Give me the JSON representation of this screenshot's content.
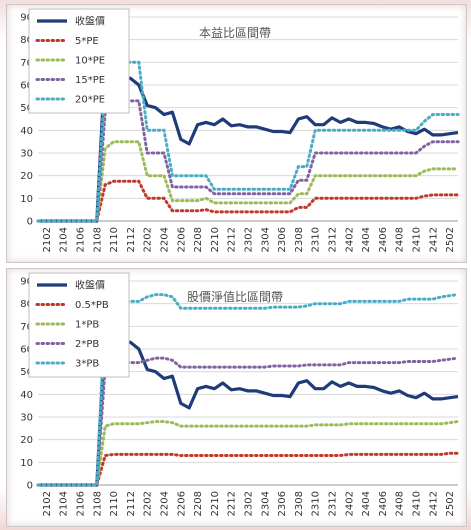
{
  "chart_data": [
    {
      "type": "line",
      "title": "本益比區間帶",
      "ylim": [
        0,
        90
      ],
      "yticks": [
        0,
        10,
        20,
        30,
        40,
        50,
        60,
        70,
        80,
        90
      ],
      "grid": true,
      "legend_position": "top-left",
      "x_tick_labels": [
        "2102",
        "2104",
        "2106",
        "2108",
        "2110",
        "2112",
        "2202",
        "2204",
        "2206",
        "2208",
        "2210",
        "2212",
        "2302",
        "2304",
        "2306",
        "2308",
        "2310",
        "2312",
        "2402",
        "2404",
        "2406",
        "2408",
        "2410",
        "2412",
        "2502"
      ],
      "x": [
        "2101",
        "2102",
        "2103",
        "2104",
        "2105",
        "2106",
        "2107",
        "2108",
        "2109",
        "2110",
        "2111",
        "2112",
        "2201",
        "2202",
        "2203",
        "2204",
        "2205",
        "2206",
        "2207",
        "2208",
        "2209",
        "2210",
        "2211",
        "2212",
        "2301",
        "2302",
        "2303",
        "2304",
        "2305",
        "2306",
        "2307",
        "2308",
        "2309",
        "2310",
        "2311",
        "2312",
        "2401",
        "2402",
        "2403",
        "2404",
        "2405",
        "2406",
        "2407",
        "2408",
        "2409",
        "2410",
        "2411",
        "2412",
        "2501",
        "2502",
        "2503"
      ],
      "series": [
        {
          "name": "收盤價",
          "color": "#1f3b7a",
          "style": "solid",
          "values": [
            0,
            0,
            0,
            0,
            0,
            0,
            0,
            0,
            70,
            64,
            62,
            63,
            60,
            51,
            50,
            47,
            48,
            36,
            34,
            42.5,
            43.5,
            42.5,
            45,
            42,
            42.5,
            41.5,
            41.5,
            40.5,
            39.5,
            39.5,
            39,
            45,
            46,
            42.5,
            42.5,
            45.5,
            43.5,
            45,
            43.5,
            43.5,
            43,
            41.5,
            40.5,
            41.5,
            39.5,
            38.5,
            40.5,
            38,
            38,
            38.5,
            39
          ]
        },
        {
          "name": "5*PE",
          "color": "#c0392b",
          "style": "dotted",
          "values": [
            0,
            0,
            0,
            0,
            0,
            0,
            0,
            0,
            16,
            17.5,
            17.5,
            17.5,
            17.5,
            10,
            10,
            10,
            4.5,
            4.5,
            4.5,
            4.5,
            5,
            4,
            4,
            4,
            4,
            4,
            4,
            4,
            4,
            4,
            4,
            6,
            6,
            10,
            10,
            10,
            10,
            10,
            10,
            10,
            10,
            10,
            10,
            10,
            10,
            10,
            11,
            11.5,
            11.5,
            11.5,
            11.5
          ]
        },
        {
          "name": "10*PE",
          "color": "#9bbb59",
          "style": "dotted",
          "values": [
            0,
            0,
            0,
            0,
            0,
            0,
            0,
            0,
            32,
            35,
            35,
            35,
            35,
            20,
            20,
            20,
            9,
            9,
            9,
            9,
            10,
            8,
            8,
            8,
            8,
            8,
            8,
            8,
            8,
            8,
            8,
            12,
            12,
            20,
            20,
            20,
            20,
            20,
            20,
            20,
            20,
            20,
            20,
            20,
            20,
            20,
            22,
            23,
            23,
            23,
            23
          ]
        },
        {
          "name": "15*PE",
          "color": "#8064a2",
          "style": "dotted",
          "values": [
            0,
            0,
            0,
            0,
            0,
            0,
            0,
            0,
            48,
            53,
            53,
            53,
            53,
            30,
            30,
            30,
            15,
            15,
            15,
            15,
            15,
            12,
            12,
            12,
            12,
            12,
            12,
            12,
            12,
            12,
            12,
            18,
            18,
            30,
            30,
            30,
            30,
            30,
            30,
            30,
            30,
            30,
            30,
            30,
            30,
            30,
            33,
            35,
            35,
            35,
            35
          ]
        },
        {
          "name": "20*PE",
          "color": "#4bacc6",
          "style": "dotted",
          "values": [
            0,
            0,
            0,
            0,
            0,
            0,
            0,
            0,
            64,
            70,
            70,
            70,
            70,
            40,
            40,
            40,
            20,
            20,
            20,
            20,
            20,
            14,
            14,
            14,
            14,
            14,
            14,
            14,
            14,
            14,
            14,
            24,
            24,
            40,
            40,
            40,
            40,
            40,
            40,
            40,
            40,
            40,
            40,
            40,
            40,
            40,
            44,
            47,
            47,
            47,
            47
          ]
        }
      ]
    },
    {
      "type": "line",
      "title": "股價淨值比區間帶",
      "ylim": [
        0,
        90
      ],
      "yticks": [
        0,
        10,
        20,
        30,
        40,
        50,
        60,
        70,
        80,
        90
      ],
      "grid": true,
      "legend_position": "top-left",
      "x_tick_labels": [
        "2102",
        "2104",
        "2106",
        "2108",
        "2110",
        "2112",
        "2202",
        "2204",
        "2206",
        "2208",
        "2210",
        "2212",
        "2302",
        "2304",
        "2306",
        "2308",
        "2310",
        "2312",
        "2402",
        "2404",
        "2406",
        "2408",
        "2410",
        "2412",
        "2502"
      ],
      "x": [
        "2101",
        "2102",
        "2103",
        "2104",
        "2105",
        "2106",
        "2107",
        "2108",
        "2109",
        "2110",
        "2111",
        "2112",
        "2201",
        "2202",
        "2203",
        "2204",
        "2205",
        "2206",
        "2207",
        "2208",
        "2209",
        "2210",
        "2211",
        "2212",
        "2301",
        "2302",
        "2303",
        "2304",
        "2305",
        "2306",
        "2307",
        "2308",
        "2309",
        "2310",
        "2311",
        "2312",
        "2401",
        "2402",
        "2403",
        "2404",
        "2405",
        "2406",
        "2407",
        "2408",
        "2409",
        "2410",
        "2411",
        "2412",
        "2501",
        "2502",
        "2503"
      ],
      "series": [
        {
          "name": "收盤價",
          "color": "#1f3b7a",
          "style": "solid",
          "values": [
            0,
            0,
            0,
            0,
            0,
            0,
            0,
            0,
            70,
            64,
            62,
            63,
            60,
            51,
            50,
            47,
            48,
            36,
            34,
            42.5,
            43.5,
            42.5,
            45,
            42,
            42.5,
            41.5,
            41.5,
            40.5,
            39.5,
            39.5,
            39,
            45,
            46,
            42.5,
            42.5,
            45.5,
            43.5,
            45,
            43.5,
            43.5,
            43,
            41.5,
            40.5,
            41.5,
            39.5,
            38.5,
            40.5,
            38,
            38,
            38.5,
            39
          ]
        },
        {
          "name": "0.5*PB",
          "color": "#c0392b",
          "style": "dotted",
          "values": [
            0,
            0,
            0,
            0,
            0,
            0,
            0,
            0,
            13,
            13.5,
            13.5,
            13.5,
            13.5,
            13.5,
            13.5,
            13.5,
            13.5,
            13,
            13,
            13,
            13,
            13,
            13,
            13,
            13,
            13,
            13,
            13,
            13,
            13,
            13,
            13,
            13,
            13,
            13,
            13,
            13,
            13.5,
            13.5,
            13.5,
            13.5,
            13.5,
            13.5,
            13.5,
            13.5,
            13.5,
            13.5,
            13.5,
            13.5,
            14,
            14
          ]
        },
        {
          "name": "1*PB",
          "color": "#9bbb59",
          "style": "dotted",
          "values": [
            0,
            0,
            0,
            0,
            0,
            0,
            0,
            0,
            26,
            27,
            27,
            27,
            27,
            27.5,
            28,
            28,
            27.5,
            26,
            26,
            26,
            26,
            26,
            26,
            26,
            26,
            26,
            26,
            26,
            26,
            26,
            26,
            26,
            26,
            26.5,
            26.5,
            26.5,
            26.5,
            27,
            27,
            27,
            27,
            27,
            27,
            27,
            27,
            27,
            27,
            27,
            27,
            27.5,
            28
          ]
        },
        {
          "name": "2*PB",
          "color": "#8064a2",
          "style": "dotted",
          "values": [
            0,
            0,
            0,
            0,
            0,
            0,
            0,
            0,
            52,
            54,
            54,
            54,
            54,
            55,
            56,
            56,
            55,
            52,
            52,
            52,
            52,
            52,
            52,
            52,
            52,
            52,
            52,
            52,
            52.5,
            52.5,
            52.5,
            52.5,
            53,
            53,
            53,
            53,
            53,
            54,
            54,
            54,
            54,
            54,
            54,
            54,
            54.5,
            54.5,
            54.5,
            54.5,
            55,
            55.5,
            56
          ]
        },
        {
          "name": "3*PB",
          "color": "#4bacc6",
          "style": "dotted",
          "values": [
            0,
            0,
            0,
            0,
            0,
            0,
            0,
            0,
            78,
            81,
            81,
            81,
            81,
            83,
            84,
            84,
            83,
            78,
            78,
            78,
            78,
            78,
            78,
            78,
            78,
            78,
            78,
            78,
            78.5,
            78.5,
            78.5,
            78.5,
            79,
            80,
            80,
            80,
            80,
            81,
            81,
            81,
            81,
            81,
            81,
            81,
            82,
            82,
            82,
            82,
            83,
            83.5,
            84
          ]
        }
      ]
    }
  ]
}
